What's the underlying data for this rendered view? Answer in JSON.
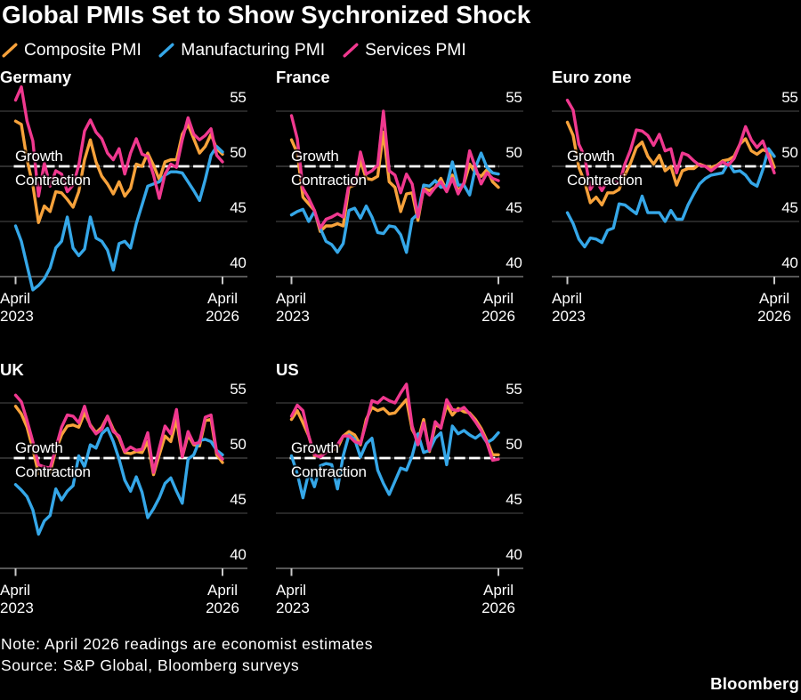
{
  "title": "Global PMIs Set to Show Sychronized Shock",
  "legend": [
    {
      "label": "Composite PMI",
      "series_key": "composite",
      "color": "#F7A23B"
    },
    {
      "label": "Manufacturing PMI",
      "series_key": "manufacturing",
      "color": "#35A7E8"
    },
    {
      "label": "Services PMI",
      "series_key": "services",
      "color": "#F0388F"
    }
  ],
  "annotations": {
    "growth": "Growth",
    "contraction": "Contraction"
  },
  "footer": {
    "note": "Note: April 2026 readings are economist estimates",
    "source": "Source: S&P Global, Bloomberg surveys",
    "logo": "Bloomberg"
  },
  "colors": {
    "background": "#000000",
    "text": "#FFFFFF",
    "grid": "#3D3D3D",
    "grid50": "#4A4A4A",
    "axis": "#8A8A8A",
    "tick": "#C9C9C9",
    "dashed": "#FFFFFF",
    "composite": "#F7A23B",
    "manufacturing": "#35A7E8",
    "services": "#F0388F"
  },
  "chart_data": {
    "type": "line",
    "title": "Global PMIs Set to Show Sychronized Shock",
    "x_start_label": "April\n2023",
    "x_end_label": "April\n2026",
    "months": 37,
    "y_ticks": [
      55,
      50,
      45,
      40
    ],
    "y_tick_labels": [
      "55",
      "50",
      "45",
      "40"
    ],
    "reference_line": 50,
    "grid": true,
    "legend_position": "top",
    "series_names": [
      "Composite PMI",
      "Manufacturing PMI",
      "Services PMI"
    ],
    "panels": [
      {
        "title": "Germany",
        "composite": [
          54.1,
          53.8,
          50.6,
          48.3,
          44.9,
          46.4,
          45.9,
          47.7,
          47.6,
          47.0,
          46.3,
          47.7,
          50.6,
          52.4,
          50.4,
          49.1,
          48.4,
          47.5,
          48.6,
          47.3,
          48.0,
          50.2,
          50.0,
          51.2,
          50.1,
          48.8,
          50.4,
          50.6,
          50.6,
          52.9,
          53.8,
          52.5,
          51.2,
          51.8,
          52.9,
          51.6,
          51.1
        ],
        "manufacturing": [
          44.6,
          43.2,
          41.0,
          38.8,
          39.2,
          39.8,
          40.8,
          42.6,
          43.2,
          45.4,
          42.6,
          41.9,
          42.5,
          45.4,
          43.5,
          43.2,
          42.4,
          40.6,
          43.0,
          43.2,
          42.6,
          44.8,
          46.5,
          48.2,
          48.4,
          48.6,
          49.2,
          49.5,
          49.5,
          49.4,
          48.6,
          47.8,
          46.9,
          48.8,
          51.0,
          51.8,
          51.3
        ],
        "services": [
          56.0,
          57.2,
          54.1,
          52.3,
          47.3,
          50.3,
          48.2,
          49.6,
          49.3,
          47.7,
          48.3,
          50.1,
          53.2,
          54.2,
          53.1,
          52.5,
          51.2,
          50.6,
          51.6,
          49.3,
          51.2,
          52.5,
          51.1,
          50.9,
          49.2,
          47.1,
          49.3,
          50.2,
          49.9,
          52.4,
          54.4,
          52.9,
          52.4,
          52.8,
          53.4,
          51.0,
          50.4
        ]
      },
      {
        "title": "France",
        "composite": [
          52.4,
          51.2,
          47.2,
          46.6,
          46.0,
          44.1,
          44.6,
          44.6,
          44.8,
          44.6,
          48.1,
          48.3,
          50.5,
          48.9,
          48.8,
          49.1,
          53.1,
          48.6,
          48.1,
          45.9,
          47.5,
          47.6,
          45.1,
          48.0,
          47.8,
          48.1,
          48.9,
          47.8,
          49.2,
          47.8,
          48.4,
          50.2,
          49.4,
          49.1,
          49.7,
          48.6,
          48.1
        ],
        "manufacturing": [
          45.6,
          45.9,
          46.1,
          45.0,
          45.9,
          44.4,
          43.2,
          42.9,
          42.2,
          43.0,
          46.0,
          46.2,
          45.3,
          46.4,
          45.4,
          44.0,
          43.9,
          44.6,
          44.5,
          43.8,
          42.2,
          45.2,
          45.7,
          48.3,
          48.2,
          48.7,
          48.1,
          48.2,
          50.4,
          48.3,
          48.3,
          47.4,
          49.9,
          51.2,
          49.9,
          49.4,
          49.3
        ],
        "services": [
          54.6,
          52.5,
          48.0,
          47.1,
          46.0,
          44.4,
          45.2,
          45.4,
          45.7,
          45.4,
          48.4,
          48.3,
          51.3,
          49.3,
          49.6,
          50.1,
          55.0,
          49.6,
          49.2,
          47.6,
          49.3,
          48.4,
          45.4,
          47.9,
          47.4,
          48.1,
          48.6,
          47.7,
          48.9,
          47.5,
          48.5,
          51.4,
          49.9,
          48.4,
          49.4,
          48.9,
          48.7
        ]
      },
      {
        "title": "Euro zone",
        "composite": [
          54.0,
          52.8,
          49.9,
          48.6,
          46.7,
          47.2,
          46.5,
          47.6,
          47.6,
          47.9,
          49.2,
          50.3,
          51.7,
          52.2,
          50.9,
          50.2,
          51.0,
          49.6,
          50.0,
          48.3,
          49.6,
          49.8,
          49.8,
          50.2,
          50.0,
          49.9,
          50.1,
          50.5,
          50.6,
          50.9,
          52.0,
          52.5,
          51.4,
          51.1,
          51.5,
          51.3,
          49.9
        ],
        "manufacturing": [
          45.8,
          44.8,
          43.4,
          42.7,
          43.5,
          43.4,
          43.1,
          44.2,
          44.4,
          46.6,
          46.5,
          46.1,
          45.7,
          47.3,
          45.8,
          45.8,
          45.8,
          45.0,
          46.0,
          45.2,
          45.2,
          46.5,
          47.5,
          48.4,
          48.9,
          49.2,
          49.3,
          49.4,
          50.3,
          49.5,
          49.6,
          49.2,
          48.5,
          48.2,
          49.7,
          51.6,
          50.9
        ],
        "services": [
          56.0,
          55.1,
          52.0,
          50.9,
          47.9,
          48.7,
          47.8,
          48.7,
          48.8,
          48.4,
          50.2,
          51.5,
          53.3,
          53.2,
          52.8,
          51.9,
          52.9,
          51.4,
          51.6,
          49.4,
          51.2,
          51.0,
          50.5,
          50.1,
          50.0,
          49.6,
          50.0,
          50.4,
          50.1,
          50.7,
          52.0,
          53.6,
          52.4,
          51.7,
          52.3,
          50.9,
          49.4
        ]
      },
      {
        "title": "UK",
        "composite": [
          54.7,
          54.0,
          52.8,
          50.8,
          48.6,
          48.5,
          48.7,
          50.7,
          52.1,
          52.9,
          53.0,
          52.8,
          54.1,
          53.0,
          52.3,
          52.8,
          53.8,
          52.6,
          51.8,
          50.5,
          50.4,
          50.6,
          50.5,
          51.5,
          48.5,
          50.3,
          52.0,
          51.5,
          53.5,
          50.1,
          52.1,
          51.2,
          51.1,
          53.4,
          53.5,
          50.3,
          49.6
        ],
        "manufacturing": [
          47.6,
          47.1,
          46.5,
          45.3,
          43.1,
          44.3,
          44.8,
          47.2,
          46.2,
          47.0,
          47.5,
          50.2,
          49.2,
          51.2,
          50.9,
          52.2,
          52.7,
          51.5,
          49.9,
          48.0,
          47.0,
          48.3,
          46.9,
          44.6,
          45.4,
          46.4,
          47.7,
          48.2,
          47.0,
          45.9,
          49.9,
          50.3,
          51.6,
          51.7,
          51.5,
          50.7,
          50.3
        ],
        "services": [
          55.7,
          55.1,
          53.4,
          51.5,
          49.4,
          49.2,
          49.1,
          50.9,
          52.8,
          53.9,
          53.8,
          53.2,
          54.7,
          52.9,
          52.2,
          52.6,
          53.8,
          52.4,
          52.0,
          50.6,
          51.0,
          50.7,
          50.8,
          52.3,
          48.7,
          50.9,
          52.9,
          52.2,
          54.4,
          50.1,
          52.4,
          51.3,
          51.4,
          53.7,
          53.9,
          50.5,
          49.9
        ]
      },
      {
        "title": "US",
        "composite": [
          53.5,
          54.3,
          53.2,
          52.0,
          50.2,
          50.2,
          50.6,
          50.7,
          50.9,
          52.0,
          52.4,
          52.1,
          51.2,
          53.5,
          54.6,
          54.3,
          54.5,
          54.0,
          54.1,
          54.7,
          55.3,
          52.6,
          51.6,
          53.5,
          50.6,
          53.0,
          52.8,
          54.8,
          53.9,
          54.5,
          54.2,
          54.1,
          53.5,
          52.7,
          51.6,
          50.3,
          50.3
        ],
        "manufacturing": [
          50.2,
          48.6,
          46.4,
          48.7,
          47.4,
          49.3,
          49.5,
          49.4,
          47.2,
          50.2,
          52.1,
          51.7,
          50.1,
          51.3,
          51.8,
          48.9,
          47.7,
          46.7,
          47.9,
          49.1,
          48.9,
          50.2,
          52.2,
          50.5,
          50.7,
          51.8,
          52.3,
          49.4,
          52.9,
          52.2,
          52.5,
          52.1,
          51.8,
          52.2,
          51.4,
          51.7,
          52.3
        ],
        "services": [
          53.8,
          54.8,
          54.3,
          52.0,
          50.3,
          50.1,
          50.5,
          50.7,
          51.2,
          52.0,
          52.0,
          51.5,
          51.3,
          53.2,
          55.2,
          55.0,
          55.5,
          55.2,
          55.0,
          55.9,
          56.7,
          52.9,
          51.2,
          53.2,
          50.7,
          53.3,
          52.7,
          55.3,
          54.4,
          54.3,
          54.6,
          54.0,
          53.3,
          52.5,
          51.4,
          49.8,
          49.9
        ]
      }
    ]
  }
}
